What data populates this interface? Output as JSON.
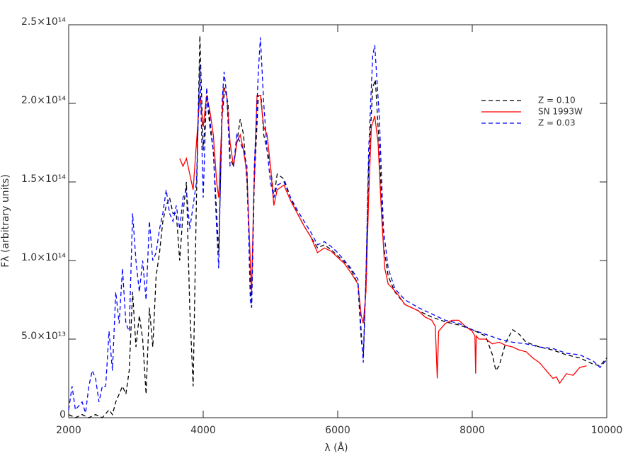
{
  "chart_data": {
    "type": "line",
    "xlabel": "λ (Å)",
    "ylabel": "Fλ (arbitrary units)",
    "xlim": [
      2000,
      10000
    ],
    "ylim": [
      0,
      250000000000000.0
    ],
    "xticks": [
      2000,
      4000,
      6000,
      8000,
      10000
    ],
    "yticks": [
      0,
      {
        "value": 50000000000000.0,
        "label": "5.0×10¹³"
      },
      {
        "value": 100000000000000.0,
        "label": "1.0×10¹⁴"
      },
      {
        "value": 150000000000000.0,
        "label": "1.5×10¹⁴"
      },
      {
        "value": 200000000000000.0,
        "label": "2.0×10¹⁴"
      },
      {
        "value": 250000000000000.0,
        "label": "2.5×10¹⁴"
      }
    ],
    "legend": "upper right",
    "series": [
      {
        "name": "Z = 0.10",
        "color": "#000000",
        "linestyle": "dashed",
        "x": [
          2000,
          2100,
          2200,
          2300,
          2400,
          2500,
          2600,
          2650,
          2700,
          2750,
          2800,
          2850,
          2900,
          2950,
          3000,
          3050,
          3100,
          3150,
          3200,
          3250,
          3300,
          3350,
          3400,
          3450,
          3500,
          3550,
          3600,
          3650,
          3700,
          3750,
          3800,
          3850,
          3900,
          3950,
          4000,
          4050,
          4100,
          4150,
          4200,
          4230,
          4280,
          4320,
          4370,
          4400,
          4450,
          4500,
          4550,
          4600,
          4650,
          4700,
          4720,
          4760,
          4820,
          4860,
          4900,
          4950,
          5000,
          5050,
          5100,
          5200,
          5300,
          5400,
          5500,
          5600,
          5700,
          5800,
          5900,
          6000,
          6100,
          6200,
          6300,
          6350,
          6380,
          6420,
          6460,
          6520,
          6560,
          6620,
          6680,
          6750,
          6850,
          7000,
          7200,
          7400,
          7600,
          7800,
          8000,
          8200,
          8300,
          8350,
          8400,
          8500,
          8600,
          8700,
          8800,
          9000,
          9200,
          9400,
          9600,
          9800,
          9900,
          10000
        ],
        "values": [
          2000000000000.0,
          0,
          2000000000000.0,
          0,
          2000000000000.0,
          0,
          5000000000000.0,
          2000000000000.0,
          10000000000000.0,
          15000000000000.0,
          20000000000000.0,
          15000000000000.0,
          30000000000000.0,
          80000000000000.0,
          45000000000000.0,
          65000000000000.0,
          50000000000000.0,
          15000000000000.0,
          70000000000000.0,
          45000000000000.0,
          90000000000000.0,
          105000000000000.0,
          125000000000000.0,
          135000000000000.0,
          140000000000000.0,
          130000000000000.0,
          130000000000000.0,
          100000000000000.0,
          130000000000000.0,
          150000000000000.0,
          70000000000000.0,
          20000000000000.0,
          140000000000000.0,
          243000000000000.0,
          170000000000000.0,
          205000000000000.0,
          185000000000000.0,
          170000000000000.0,
          130000000000000.0,
          105000000000000.0,
          190000000000000.0,
          210000000000000.0,
          200000000000000.0,
          165000000000000.0,
          160000000000000.0,
          175000000000000.0,
          190000000000000.0,
          180000000000000.0,
          150000000000000.0,
          90000000000000.0,
          70000000000000.0,
          150000000000000.0,
          205000000000000.0,
          205000000000000.0,
          180000000000000.0,
          170000000000000.0,
          160000000000000.0,
          140000000000000.0,
          155000000000000.0,
          152000000000000.0,
          140000000000000.0,
          130000000000000.0,
          122000000000000.0,
          115000000000000.0,
          108000000000000.0,
          110000000000000.0,
          107000000000000.0,
          103000000000000.0,
          99000000000000.0,
          94000000000000.0,
          85000000000000.0,
          50000000000000.0,
          38000000000000.0,
          90000000000000.0,
          160000000000000.0,
          210000000000000.0,
          215000000000000.0,
          170000000000000.0,
          110000000000000.0,
          90000000000000.0,
          80000000000000.0,
          72000000000000.0,
          68000000000000.0,
          64000000000000.0,
          61000000000000.0,
          59000000000000.0,
          56000000000000.0,
          52000000000000.0,
          40000000000000.0,
          30000000000000.0,
          33000000000000.0,
          48000000000000.0,
          56000000000000.0,
          53000000000000.0,
          48000000000000.0,
          45000000000000.0,
          43000000000000.0,
          40000000000000.0,
          38000000000000.0,
          34000000000000.0,
          33000000000000.0,
          38000000000000.0
        ]
      },
      {
        "name": "SN 1993W",
        "color": "#ff0000",
        "linestyle": "solid",
        "x": [
          3650,
          3700,
          3750,
          3800,
          3850,
          3900,
          3950,
          4000,
          4050,
          4100,
          4150,
          4200,
          4230,
          4270,
          4300,
          4350,
          4400,
          4450,
          4500,
          4550,
          4600,
          4650,
          4700,
          4720,
          4750,
          4800,
          4850,
          4900,
          4950,
          5000,
          5050,
          5100,
          5200,
          5300,
          5400,
          5500,
          5600,
          5700,
          5800,
          5900,
          6000,
          6100,
          6200,
          6300,
          6350,
          6380,
          6420,
          6460,
          6500,
          6550,
          6600,
          6650,
          6700,
          6750,
          6800,
          6900,
          7000,
          7100,
          7200,
          7300,
          7400,
          7450,
          7480,
          7500,
          7600,
          7700,
          7800,
          7900,
          8000,
          8040,
          8050,
          8060,
          8100,
          8200,
          8300,
          8400,
          8500,
          8600,
          8700,
          8800,
          8900,
          9000,
          9100,
          9200,
          9250,
          9300,
          9400,
          9500,
          9600,
          9700
        ],
        "values": [
          165000000000000.0,
          160000000000000.0,
          165000000000000.0,
          155000000000000.0,
          145000000000000.0,
          175000000000000.0,
          205000000000000.0,
          185000000000000.0,
          205000000000000.0,
          195000000000000.0,
          180000000000000.0,
          150000000000000.0,
          140000000000000.0,
          180000000000000.0,
          210000000000000.0,
          205000000000000.0,
          175000000000000.0,
          160000000000000.0,
          175000000000000.0,
          180000000000000.0,
          170000000000000.0,
          155000000000000.0,
          100000000000000.0,
          80000000000000.0,
          140000000000000.0,
          205000000000000.0,
          205000000000000.0,
          185000000000000.0,
          180000000000000.0,
          160000000000000.0,
          135000000000000.0,
          145000000000000.0,
          148000000000000.0,
          138000000000000.0,
          130000000000000.0,
          122000000000000.0,
          115000000000000.0,
          105000000000000.0,
          108000000000000.0,
          106000000000000.0,
          102000000000000.0,
          98000000000000.0,
          92000000000000.0,
          85000000000000.0,
          65000000000000.0,
          60000000000000.0,
          80000000000000.0,
          140000000000000.0,
          185000000000000.0,
          192000000000000.0,
          175000000000000.0,
          130000000000000.0,
          95000000000000.0,
          85000000000000.0,
          83000000000000.0,
          78000000000000.0,
          72000000000000.0,
          70000000000000.0,
          68000000000000.0,
          64000000000000.0,
          62000000000000.0,
          58000000000000.0,
          25000000000000.0,
          55000000000000.0,
          60000000000000.0,
          62000000000000.0,
          62000000000000.0,
          58000000000000.0,
          55000000000000.0,
          52000000000000.0,
          28000000000000.0,
          52000000000000.0,
          50000000000000.0,
          50000000000000.0,
          47000000000000.0,
          48000000000000.0,
          46000000000000.0,
          45000000000000.0,
          43000000000000.0,
          42000000000000.0,
          38000000000000.0,
          35000000000000.0,
          30000000000000.0,
          25000000000000.0,
          26000000000000.0,
          22000000000000.0,
          28000000000000.0,
          27000000000000.0,
          32000000000000.0,
          33000000000000.0
        ]
      },
      {
        "name": "Z = 0.03",
        "color": "#0000ff",
        "linestyle": "dashed",
        "x": [
          2000,
          2050,
          2100,
          2200,
          2250,
          2300,
          2350,
          2400,
          2450,
          2500,
          2550,
          2600,
          2650,
          2700,
          2750,
          2800,
          2850,
          2900,
          2950,
          3000,
          3050,
          3100,
          3150,
          3200,
          3250,
          3300,
          3350,
          3400,
          3450,
          3500,
          3550,
          3600,
          3650,
          3700,
          3750,
          3800,
          3850,
          3900,
          3950,
          4000,
          4050,
          4100,
          4150,
          4200,
          4230,
          4280,
          4310,
          4350,
          4400,
          4450,
          4500,
          4550,
          4600,
          4650,
          4700,
          4720,
          4760,
          4820,
          4850,
          4900,
          4950,
          5000,
          5050,
          5100,
          5200,
          5300,
          5400,
          5500,
          5600,
          5700,
          5800,
          5900,
          6000,
          6100,
          6200,
          6300,
          6350,
          6380,
          6420,
          6460,
          6520,
          6550,
          6620,
          6680,
          6750,
          6850,
          7000,
          7200,
          7400,
          7600,
          7800,
          8000,
          8200,
          8400,
          8600,
          8800,
          9000,
          9200,
          9400,
          9600,
          9800,
          9900,
          10000
        ],
        "values": [
          5000000000000.0,
          20000000000000.0,
          5000000000000.0,
          10000000000000.0,
          3000000000000.0,
          20000000000000.0,
          30000000000000.0,
          25000000000000.0,
          10000000000000.0,
          20000000000000.0,
          20000000000000.0,
          55000000000000.0,
          30000000000000.0,
          80000000000000.0,
          60000000000000.0,
          95000000000000.0,
          60000000000000.0,
          55000000000000.0,
          130000000000000.0,
          100000000000000.0,
          80000000000000.0,
          100000000000000.0,
          75000000000000.0,
          125000000000000.0,
          100000000000000.0,
          105000000000000.0,
          120000000000000.0,
          130000000000000.0,
          145000000000000.0,
          130000000000000.0,
          125000000000000.0,
          135000000000000.0,
          120000000000000.0,
          140000000000000.0,
          145000000000000.0,
          120000000000000.0,
          135000000000000.0,
          150000000000000.0,
          225000000000000.0,
          140000000000000.0,
          210000000000000.0,
          190000000000000.0,
          170000000000000.0,
          120000000000000.0,
          95000000000000.0,
          200000000000000.0,
          220000000000000.0,
          205000000000000.0,
          160000000000000.0,
          160000000000000.0,
          180000000000000.0,
          175000000000000.0,
          170000000000000.0,
          160000000000000.0,
          75000000000000.0,
          70000000000000.0,
          160000000000000.0,
          220000000000000.0,
          242000000000000.0,
          200000000000000.0,
          170000000000000.0,
          150000000000000.0,
          140000000000000.0,
          148000000000000.0,
          150000000000000.0,
          140000000000000.0,
          132000000000000.0,
          125000000000000.0,
          118000000000000.0,
          110000000000000.0,
          112000000000000.0,
          109000000000000.0,
          105000000000000.0,
          100000000000000.0,
          95000000000000.0,
          88000000000000.0,
          55000000000000.0,
          35000000000000.0,
          90000000000000.0,
          170000000000000.0,
          230000000000000.0,
          237000000000000.0,
          190000000000000.0,
          120000000000000.0,
          95000000000000.0,
          82000000000000.0,
          75000000000000.0,
          70000000000000.0,
          66000000000000.0,
          62000000000000.0,
          60000000000000.0,
          56000000000000.0,
          53000000000000.0,
          50000000000000.0,
          48000000000000.0,
          47000000000000.0,
          45000000000000.0,
          44000000000000.0,
          41000000000000.0,
          40000000000000.0,
          36000000000000.0,
          32000000000000.0,
          37000000000000.0
        ]
      }
    ]
  }
}
